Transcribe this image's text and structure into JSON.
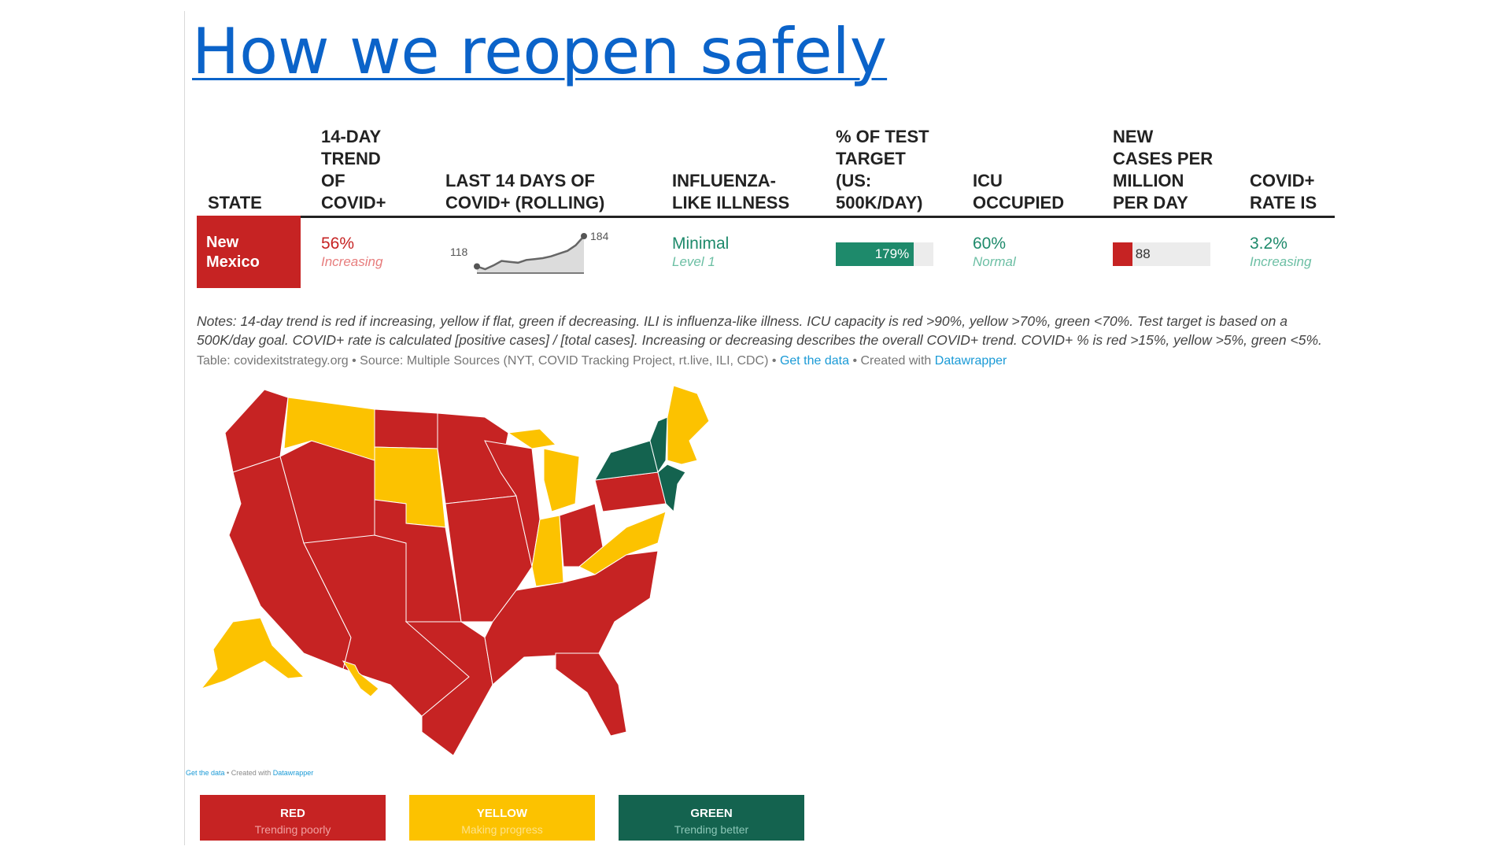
{
  "slide": {
    "title": "How we reopen safely"
  },
  "table": {
    "headers": {
      "state": "STATE",
      "trend": [
        "14-DAY",
        "TREND",
        "OF",
        "COVID+"
      ],
      "last14": [
        "LAST 14 DAYS OF",
        "COVID+ (ROLLING)"
      ],
      "ili": [
        "INFLUENZA-",
        "LIKE ILLNESS"
      ],
      "test": [
        "% OF TEST",
        "TARGET",
        "(US:",
        "500K/DAY)"
      ],
      "icu": [
        "ICU",
        "OCCUPIED"
      ],
      "cases": [
        "NEW",
        "CASES PER",
        "MILLION",
        "PER DAY"
      ],
      "rate": [
        "COVID+",
        "RATE IS"
      ]
    },
    "row": {
      "state": [
        "New",
        "Mexico"
      ],
      "trend_value": "56%",
      "trend_label": "Increasing",
      "spark_start": "118",
      "spark_end": "184",
      "spark_values": [
        118,
        112,
        120,
        130,
        128,
        126,
        132,
        134,
        136,
        140,
        146,
        152,
        164,
        184
      ],
      "ili_value": "Minimal",
      "ili_level": "Level 1",
      "test_value": "179%",
      "test_fraction": 0.8,
      "icu_value": "60%",
      "icu_label": "Normal",
      "cases_value": "88",
      "cases_fraction": 0.2,
      "rate_value": "3.2%",
      "rate_label": "Increasing"
    }
  },
  "notes": {
    "line1": "Notes: 14-day trend is red if increasing, yellow if flat, green if decreasing. ILI is influenza-like illness. ICU capacity is red >90%, yellow >70%, green <70%. Test target is based on a",
    "line2": "500K/day goal. COVID+ rate is calculated [positive cases] / [total cases]. Increasing or decreasing describes the overall COVID+ trend. COVID+ % is red >15%, yellow >5%, green <5%."
  },
  "source": {
    "text": "Table: covidexitstrategy.org • Source: Multiple Sources (NYT, COVID Tracking Project, rt.live, ILI, CDC) • ",
    "link1": "Get the data",
    "mid": " • Created with ",
    "link2": "Datawrapper"
  },
  "map_source": {
    "link1": "Get the data",
    "mid": " • Created with ",
    "link2": "Datawrapper"
  },
  "legend": [
    {
      "label": "RED",
      "sub": "Trending poorly",
      "color": "#c62323",
      "sub_color": "#f0a0a0"
    },
    {
      "label": "YELLOW",
      "sub": "Making progress",
      "color": "#fcc200",
      "sub_color": "#fde28a"
    },
    {
      "label": "GREEN",
      "sub": "Trending better",
      "color": "#14634f",
      "sub_color": "#8cc7b7"
    }
  ],
  "colors": {
    "red": "#c62323",
    "yellow": "#fcc200",
    "green": "#14634f",
    "title_blue": "#0b63c9"
  }
}
